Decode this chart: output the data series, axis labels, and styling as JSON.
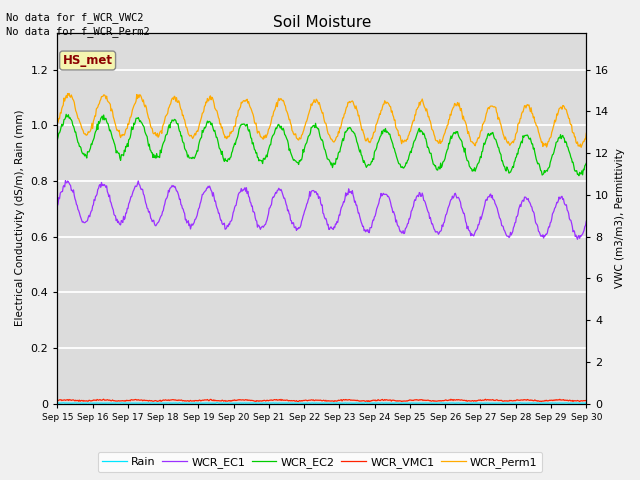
{
  "title": "Soil Moisture",
  "ylabel_left": "Electrical Conductivity (dS/m), Rain (mm)",
  "ylabel_right": "VWC (m3/m3), Permittivity",
  "annotations": [
    "No data for f_WCR_VWC2",
    "No data for f_WCR_Perm2"
  ],
  "station_label": "HS_met",
  "ylim_left": [
    0,
    1.333
  ],
  "ylim_right": [
    0,
    17.77
  ],
  "xtick_labels": [
    "Sep 15",
    "Sep 16",
    "Sep 17",
    "Sep 18",
    "Sep 19",
    "Sep 20",
    "Sep 21",
    "Sep 22",
    "Sep 23",
    "Sep 24",
    "Sep 25",
    "Sep 26",
    "Sep 27",
    "Sep 28",
    "Sep 29",
    "Sep 30"
  ],
  "ytick_left": [
    0.0,
    0.2,
    0.4,
    0.6,
    0.8,
    1.0,
    1.2
  ],
  "ytick_right": [
    0,
    2,
    4,
    6,
    8,
    10,
    12,
    14,
    16
  ],
  "colors": {
    "Rain": "#00e5ff",
    "WCR_EC1": "#9b30ff",
    "WCR_EC2": "#00cc00",
    "WCR_VMC1": "#ff2200",
    "WCR_Perm1": "#ffaa00"
  },
  "plot_bg_color": "#dcdcdc",
  "fig_bg_color": "#f0f0f0"
}
